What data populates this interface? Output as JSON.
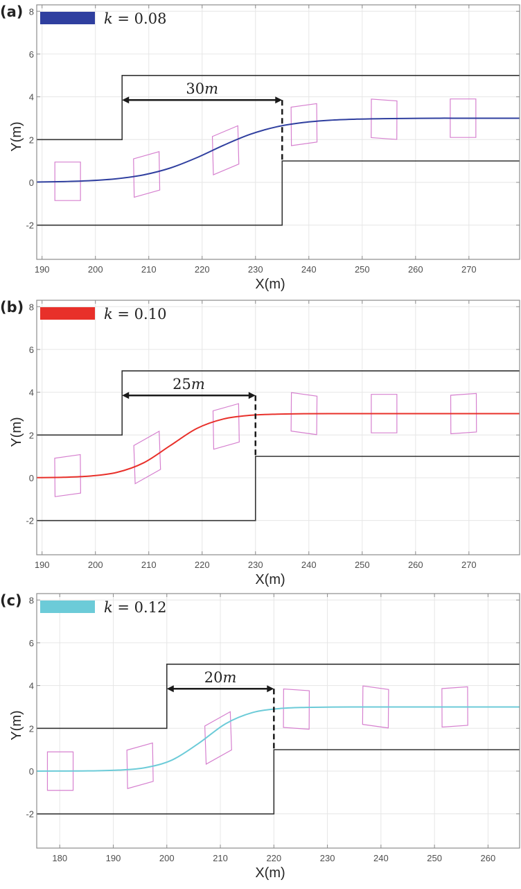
{
  "chart_data": [
    {
      "type": "line",
      "panel_label": "(a)",
      "xlabel": "X(m)",
      "ylabel": "Y(m)",
      "xlim": [
        189,
        279.5
      ],
      "ylim": [
        -3.6,
        8.3
      ],
      "xticks": [
        190,
        200,
        210,
        220,
        230,
        240,
        250,
        260,
        270
      ],
      "yticks": [
        -2,
        0,
        2,
        4,
        6,
        8
      ],
      "grid": true,
      "legend": {
        "label": "k = 0.08",
        "position": "top-left"
      },
      "series": [
        {
          "name": "k = 0.08",
          "color": "#2f3f9f",
          "x": [
            189,
            194,
            199,
            204,
            209,
            214,
            219,
            224,
            229,
            234,
            239,
            244,
            249,
            254,
            259,
            264,
            269,
            274,
            279.5
          ],
          "y": [
            0.017,
            0.037,
            0.08,
            0.17,
            0.349,
            0.668,
            1.154,
            1.732,
            2.245,
            2.6,
            2.8,
            2.906,
            2.956,
            2.98,
            2.99,
            3.0,
            3.0,
            3.0,
            3.0
          ]
        }
      ],
      "road": {
        "upper_step_x": 205,
        "upper_y": [
          2,
          5
        ],
        "lower_step_x": 235,
        "lower_y": [
          -2,
          1
        ]
      },
      "dimension": {
        "label": "30m",
        "from_x": 205,
        "to_x": 235,
        "y": 3.85
      },
      "vehicles": [
        {
          "x": 194.8,
          "y": 0.05,
          "heading_deg": 0
        },
        {
          "x": 209.6,
          "y": 0.37,
          "heading_deg": 4
        },
        {
          "x": 224.4,
          "y": 1.5,
          "heading_deg": 6
        },
        {
          "x": 239.1,
          "y": 2.7,
          "heading_deg": 2
        },
        {
          "x": 254.1,
          "y": 2.95,
          "heading_deg": -1
        },
        {
          "x": 268.9,
          "y": 3.0,
          "heading_deg": 0
        }
      ],
      "vehicle_size_m": [
        4.8,
        1.8
      ]
    },
    {
      "type": "line",
      "panel_label": "(b)",
      "xlabel": "X(m)",
      "ylabel": "Y(m)",
      "xlim": [
        189,
        279.5
      ],
      "ylim": [
        -3.6,
        8.3
      ],
      "xticks": [
        190,
        200,
        210,
        220,
        230,
        240,
        250,
        260,
        270
      ],
      "yticks": [
        -2,
        0,
        2,
        4,
        6,
        8
      ],
      "grid": true,
      "legend": {
        "label": "k = 0.10",
        "position": "top-left"
      },
      "series": [
        {
          "name": "k = 0.10",
          "color": "#e8302a",
          "x": [
            189,
            194,
            199,
            204,
            209,
            214,
            219,
            224,
            229,
            234,
            239,
            244,
            249,
            254,
            259,
            264,
            269,
            274,
            279.5
          ],
          "y": [
            0.007,
            0.024,
            0.08,
            0.25,
            0.694,
            1.5,
            2.306,
            2.75,
            2.92,
            2.976,
            2.993,
            3.0,
            3.0,
            3.0,
            3.0,
            3.0,
            3.0,
            3.0,
            3.0
          ]
        }
      ],
      "road": {
        "upper_step_x": 205,
        "upper_y": [
          2,
          5
        ],
        "lower_step_x": 230,
        "lower_y": [
          -2,
          1
        ]
      },
      "dimension": {
        "label": "25m",
        "from_x": 205,
        "to_x": 230,
        "y": 3.85
      },
      "vehicles": [
        {
          "x": 194.8,
          "y": 0.1,
          "heading_deg": 2
        },
        {
          "x": 209.7,
          "y": 0.95,
          "heading_deg": 8
        },
        {
          "x": 224.5,
          "y": 2.4,
          "heading_deg": 4
        },
        {
          "x": 239.1,
          "y": 3.0,
          "heading_deg": -2
        },
        {
          "x": 254.1,
          "y": 3.0,
          "heading_deg": 0
        },
        {
          "x": 269.0,
          "y": 3.0,
          "heading_deg": 1
        }
      ],
      "vehicle_size_m": [
        4.8,
        1.8
      ]
    },
    {
      "type": "line",
      "panel_label": "(c)",
      "xlabel": "X(m)",
      "ylabel": "Y(m)",
      "xlim": [
        175.7,
        265.9
      ],
      "ylim": [
        -3.6,
        8.3
      ],
      "xticks": [
        180,
        190,
        200,
        210,
        220,
        230,
        240,
        250,
        260
      ],
      "yticks": [
        -2,
        0,
        2,
        4,
        6,
        8
      ],
      "grid": true,
      "legend": {
        "label": "k = 0.12",
        "position": "top-left"
      },
      "series": [
        {
          "name": "k = 0.12",
          "color": "#6ccbd8",
          "x": [
            175.7,
            181,
            186,
            191,
            196,
            201,
            206,
            211,
            216,
            221,
            226,
            231,
            236,
            241,
            246,
            251,
            256,
            261,
            265.9
          ],
          "y": [
            0.001,
            0.003,
            0.013,
            0.046,
            0.162,
            0.521,
            1.306,
            2.217,
            2.736,
            2.923,
            2.979,
            2.994,
            3.0,
            3.0,
            3.0,
            3.0,
            3.0,
            3.0,
            3.0
          ]
        }
      ],
      "road": {
        "upper_step_x": 200,
        "upper_y": [
          2,
          5
        ],
        "lower_step_x": 220,
        "lower_y": [
          -2,
          1
        ]
      },
      "dimension": {
        "label": "20m",
        "from_x": 200,
        "to_x": 220,
        "y": 3.85
      },
      "vehicles": [
        {
          "x": 180.1,
          "y": 0.0,
          "heading_deg": 0
        },
        {
          "x": 195.0,
          "y": 0.25,
          "heading_deg": 4
        },
        {
          "x": 209.6,
          "y": 1.55,
          "heading_deg": 8
        },
        {
          "x": 224.2,
          "y": 2.9,
          "heading_deg": -1
        },
        {
          "x": 239.0,
          "y": 3.0,
          "heading_deg": -2
        },
        {
          "x": 253.8,
          "y": 3.0,
          "heading_deg": 1
        }
      ],
      "vehicle_size_m": [
        4.8,
        1.8
      ]
    }
  ],
  "colors": {
    "road": "#333333",
    "vehicle": "#d680cf",
    "grid": "#e6e6e6",
    "axes": "#8c8c8c",
    "dimension": "#1a1a1a"
  }
}
